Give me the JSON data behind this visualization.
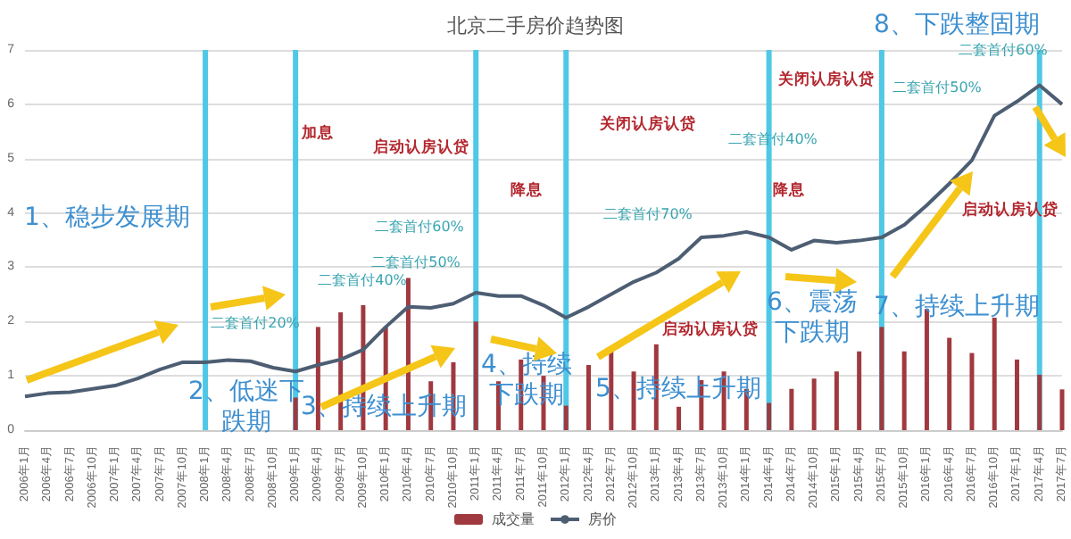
{
  "chart_data": {
    "type": "bar",
    "title": "北京二手房价趋势图",
    "categories": [
      "2006年1月",
      "2006年4月",
      "2006年7月",
      "2006年10月",
      "2007年1月",
      "2007年4月",
      "2007年7月",
      "2007年10月",
      "2008年1月",
      "2008年4月",
      "2008年7月",
      "2008年10月",
      "2009年1月",
      "2009年4月",
      "2009年7月",
      "2009年10月",
      "2010年1月",
      "2010年4月",
      "2010年7月",
      "2010年10月",
      "2011年1月",
      "2011年4月",
      "2011年7月",
      "2011年10月",
      "2012年1月",
      "2012年4月",
      "2012年7月",
      "2012年10月",
      "2013年1月",
      "2013年4月",
      "2013年7月",
      "2013年10月",
      "2014年1月",
      "2014年4月",
      "2014年7月",
      "2014年10月",
      "2015年1月",
      "2015年4月",
      "2015年7月",
      "2015年10月",
      "2016年1月",
      "2016年4月",
      "2016年7月",
      "2016年10月",
      "2017年1月",
      "2017年4月",
      "2017年7月"
    ],
    "series": [
      {
        "name": "成交量",
        "color": "#a0393f",
        "values": [
          null,
          null,
          null,
          null,
          null,
          null,
          null,
          null,
          null,
          null,
          null,
          null,
          0.6,
          1.9,
          2.17,
          2.3,
          1.9,
          2.8,
          0.9,
          1.25,
          2.0,
          0.9,
          1.3,
          1.0,
          0.45,
          1.2,
          1.45,
          1.08,
          1.58,
          0.43,
          0.92,
          1.08,
          0.76,
          0.5,
          0.76,
          0.95,
          1.08,
          1.45,
          1.9,
          1.45,
          2.23,
          1.7,
          1.42,
          2.07,
          1.3,
          1.02,
          0.75
        ]
      },
      {
        "name": "房价",
        "type": "line",
        "color": "#4d5e73",
        "values": [
          0.62,
          0.68,
          0.7,
          0.76,
          0.82,
          0.95,
          1.12,
          1.25,
          1.25,
          1.29,
          1.27,
          1.15,
          1.08,
          1.2,
          1.3,
          1.48,
          1.9,
          2.27,
          2.25,
          2.33,
          2.53,
          2.47,
          2.47,
          2.3,
          2.07,
          2.27,
          2.5,
          2.73,
          2.9,
          3.16,
          3.55,
          3.58,
          3.65,
          3.55,
          3.32,
          3.49,
          3.45,
          3.49,
          3.55,
          3.78,
          4.14,
          4.54,
          4.97,
          5.79,
          6.05,
          6.35,
          6.0
        ]
      }
    ],
    "ylim": [
      0,
      7
    ],
    "yticks": [
      0,
      1,
      2,
      3,
      4,
      5,
      6,
      7
    ],
    "grid": "y",
    "legend": "bottom",
    "marker": "none",
    "ref_lines": [
      {
        "axis": "x",
        "value": "2008年1月",
        "color": "#4fc8e6"
      },
      {
        "axis": "x",
        "value": "2009年1月",
        "color": "#4fc8e6"
      },
      {
        "axis": "x",
        "value": "2011年1月",
        "color": "#4fc8e6"
      },
      {
        "axis": "x",
        "value": "2012年1月",
        "color": "#4fc8e6"
      },
      {
        "axis": "x",
        "value": "2014年4月",
        "color": "#4fc8e6"
      },
      {
        "axis": "x",
        "value": "2015年7月",
        "color": "#4fc8e6"
      },
      {
        "axis": "x",
        "value": "2017年4月",
        "color": "#4fc8e6"
      }
    ],
    "annotations": [
      "1、稳步发展期",
      "2、低迷下跌期",
      "3、持续上升期",
      "4、持续下跌期",
      "5、持续上升期",
      "6、震荡下跌期",
      "7、持续上升期",
      "8、下跌整固期",
      "加息",
      "启动认房认贷",
      "降息",
      "关闭认房认贷",
      "降息",
      "关闭认房认贷",
      "启动认房认贷",
      "启动认房认贷",
      "二套首付20%",
      "二套首付40%",
      "二套首付50%",
      "二套首付60%",
      "二套首付70%",
      "二套首付40%",
      "二套首付50%",
      "二套首付60%"
    ]
  }
}
